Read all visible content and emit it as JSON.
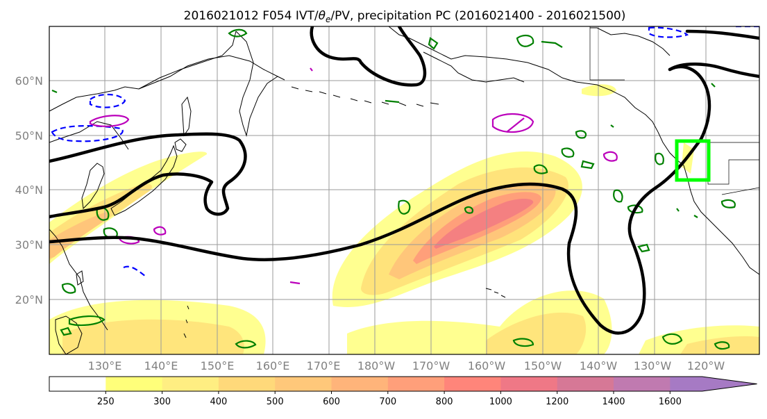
{
  "title": {
    "prefix": "2016021012 F054 IVT/",
    "theta_symbol": "θ",
    "theta_sub": "e",
    "suffix": "/PV, precipitation PC (2016021400 - 2016021500)"
  },
  "map": {
    "lat_labels": [
      "60°N",
      "50°N",
      "40°N",
      "30°N",
      "20°N"
    ],
    "lon_labels": [
      "130°E",
      "140°E",
      "150°E",
      "160°E",
      "170°E",
      "180°W",
      "170°W",
      "160°W",
      "150°W",
      "140°W",
      "130°W",
      "120°W"
    ],
    "lat_range": [
      10,
      70
    ],
    "lon_range_deg_east": [
      120,
      247
    ],
    "highlight_box": {
      "lon_w": -125,
      "lon_e": -119,
      "lat_s": 42,
      "lat_n": 49,
      "color": "#00ff00"
    }
  },
  "colorbar": {
    "tick_labels": [
      "250",
      "300",
      "400",
      "500",
      "600",
      "700",
      "800",
      "1000",
      "1200",
      "1400",
      "1600"
    ],
    "colors": [
      "#ffffff",
      "#ffff7a",
      "#ffee82",
      "#ffd97a",
      "#ffc87a",
      "#ffb47a",
      "#ff9f7a",
      "#ff857a",
      "#ef7886",
      "#d67896",
      "#c07ab0",
      "#a67ac4"
    ]
  },
  "contour_colors": {
    "jet": "#000000",
    "precip_pc": "#008000",
    "theta_warm": "#bb00bb",
    "theta_cold": "#0000ff"
  }
}
